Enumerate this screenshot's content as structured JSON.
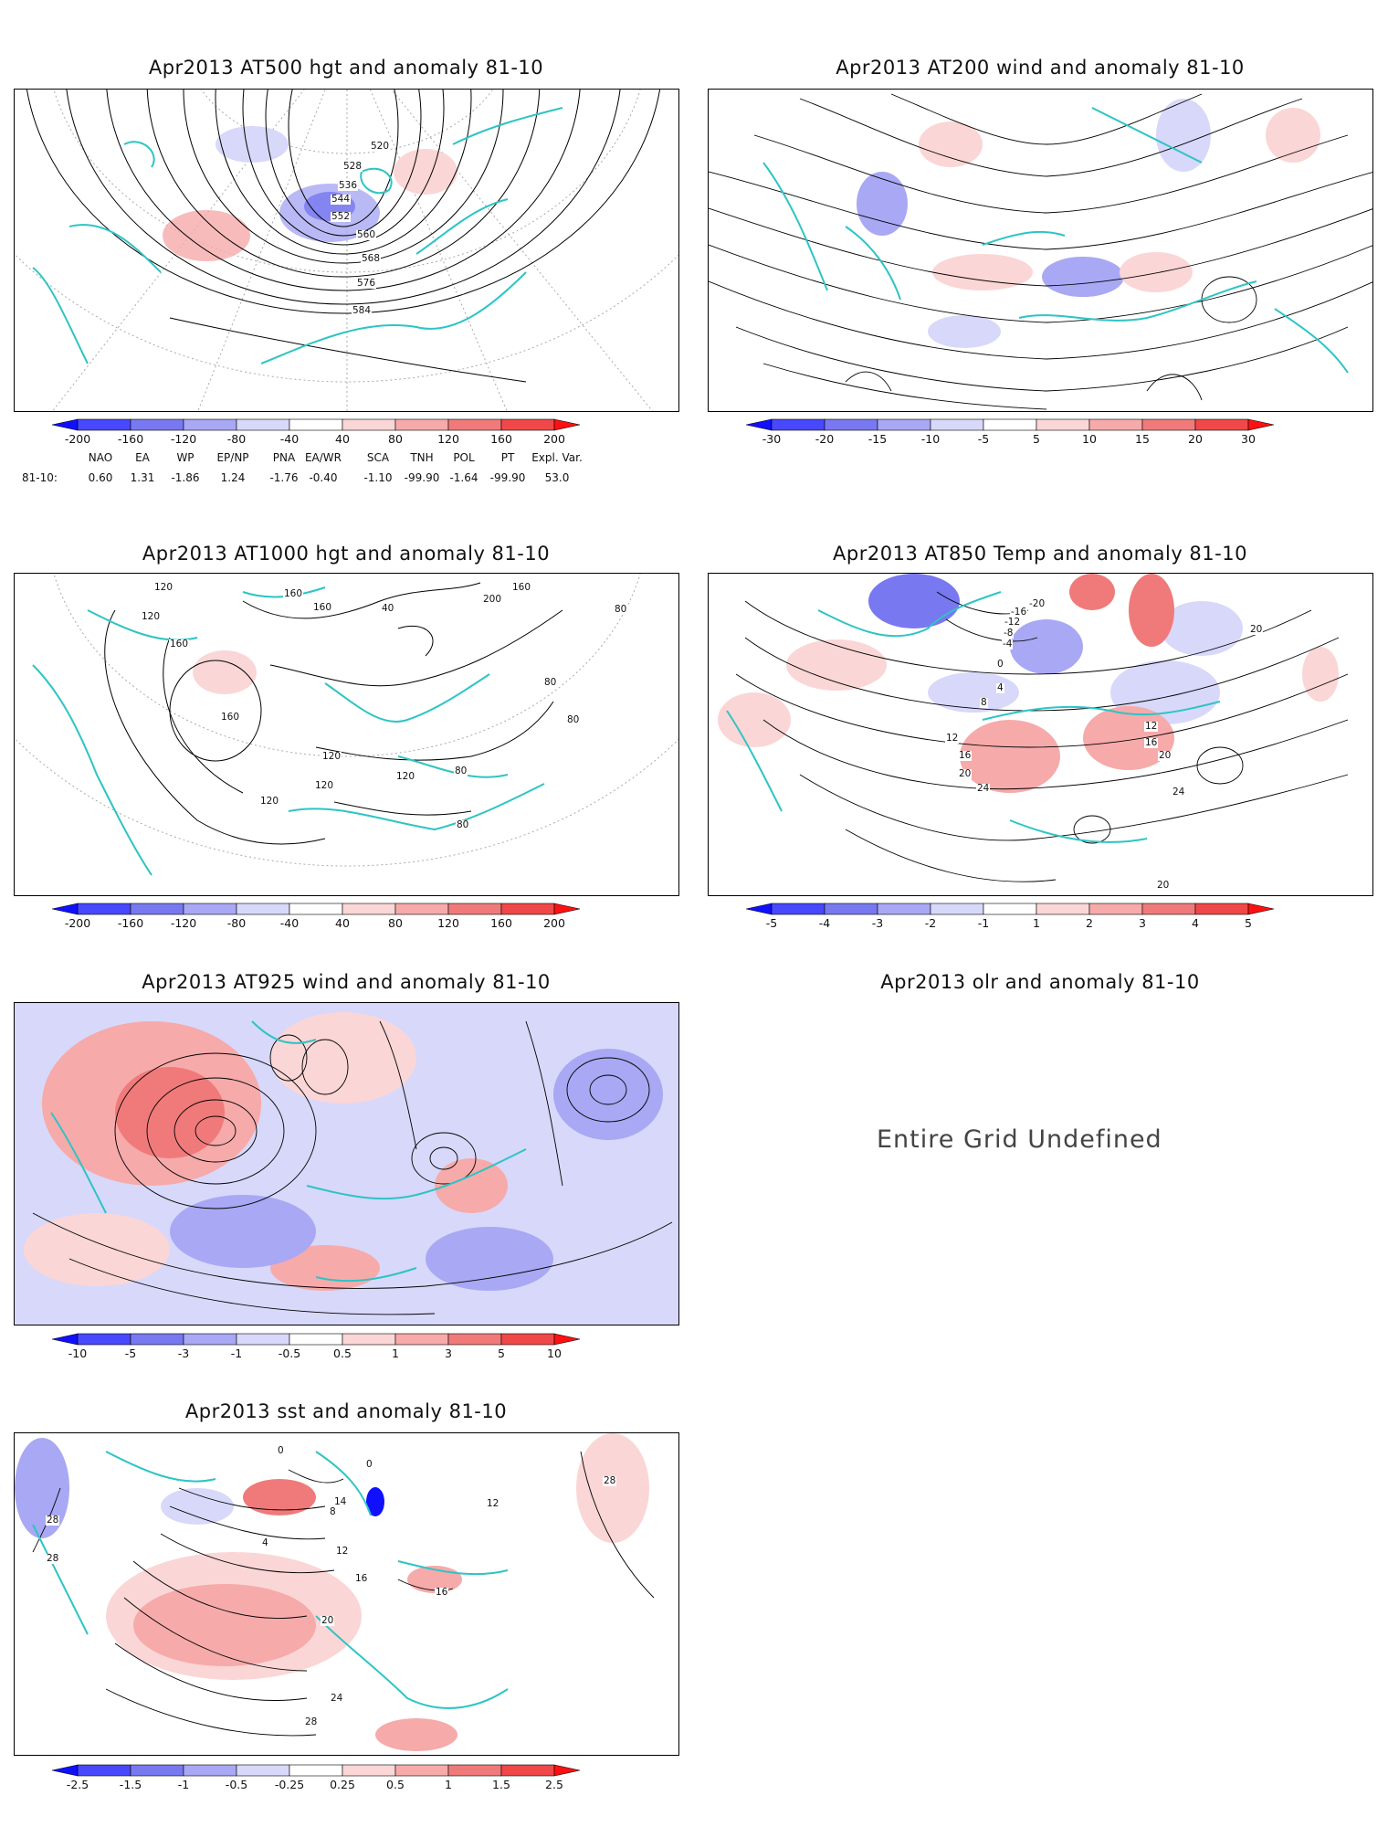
{
  "panels": [
    {
      "id": "p1",
      "title": "Apr2013 AT500 hgt and anomaly 81-10",
      "colorbar": [
        "-200",
        "-160",
        "-120",
        "-80",
        "-40",
        "40",
        "80",
        "120",
        "160",
        "200"
      ],
      "contour_labels": [
        "520",
        "528",
        "536",
        "544",
        "552",
        "560",
        "568",
        "576",
        "584"
      ]
    },
    {
      "id": "p2",
      "title": "Apr2013 AT200 wind and anomaly 81-10",
      "colorbar": [
        "-30",
        "-20",
        "-15",
        "-10",
        "-5",
        "5",
        "10",
        "15",
        "20",
        "30"
      ]
    },
    {
      "id": "p3",
      "title": "Apr2013 AT1000 hgt and anomaly 81-10",
      "colorbar": [
        "-200",
        "-160",
        "-120",
        "-80",
        "-40",
        "40",
        "80",
        "120",
        "160",
        "200"
      ],
      "contour_labels": [
        "120",
        "160",
        "120",
        "40",
        "160",
        "160",
        "80",
        "160",
        "200",
        "120",
        "120",
        "120",
        "80",
        "80",
        "160",
        "80",
        "120",
        "80"
      ]
    },
    {
      "id": "p4",
      "title": "Apr2013 AT850 Temp and anomaly 81-10",
      "colorbar": [
        "-5",
        "-4",
        "-3",
        "-2",
        "-1",
        "1",
        "2",
        "3",
        "4",
        "5"
      ],
      "contour_labels": [
        "-20",
        "-16",
        "-12",
        "-8",
        "-4",
        "0",
        "4",
        "8",
        "12",
        "16",
        "20",
        "24",
        "12",
        "16",
        "20",
        "24",
        "20",
        "20"
      ]
    },
    {
      "id": "p5",
      "title": "Apr2013 AT925 wind and anomaly 81-10",
      "colorbar": [
        "-10",
        "-5",
        "-3",
        "-1",
        "-0.5",
        "0.5",
        "1",
        "3",
        "5",
        "10"
      ]
    },
    {
      "id": "p6",
      "title": "Apr2013 olr and anomaly 81-10",
      "message": "Entire Grid Undefined"
    },
    {
      "id": "p7",
      "title": "Apr2013 sst and anomaly 81-10",
      "colorbar": [
        "-2.5",
        "-1.5",
        "-1",
        "-0.5",
        "-0.25",
        "0.25",
        "0.5",
        "1",
        "1.5",
        "2.5"
      ],
      "contour_labels": [
        "28",
        "28",
        "0",
        "0",
        "4",
        "8",
        "12",
        "16",
        "16",
        "20",
        "24",
        "28",
        "14",
        "28",
        "12"
      ]
    }
  ],
  "indices": {
    "names": [
      "NAO",
      "EA",
      "WP",
      "EP/NP",
      "PNA",
      "EA/WR",
      "SCA",
      "TNH",
      "POL",
      "PT",
      "Expl. Var."
    ],
    "row_label": "81-10:",
    "values": [
      "0.60",
      "1.31",
      "-1.86",
      "1.24",
      "-1.76",
      "-0.40",
      "-1.10",
      "-99.90",
      "-1.64",
      "-99.90",
      "53.0"
    ]
  },
  "colors": {
    "coast": "#2ec4c4",
    "contour": "#000000",
    "scale": [
      "#1010ff",
      "#4848ff",
      "#7878f0",
      "#a8a8f4",
      "#d8d8fa",
      "#ffffff",
      "#fbd6d6",
      "#f6aaaa",
      "#f07a7a",
      "#f04848",
      "#ff1010"
    ]
  }
}
